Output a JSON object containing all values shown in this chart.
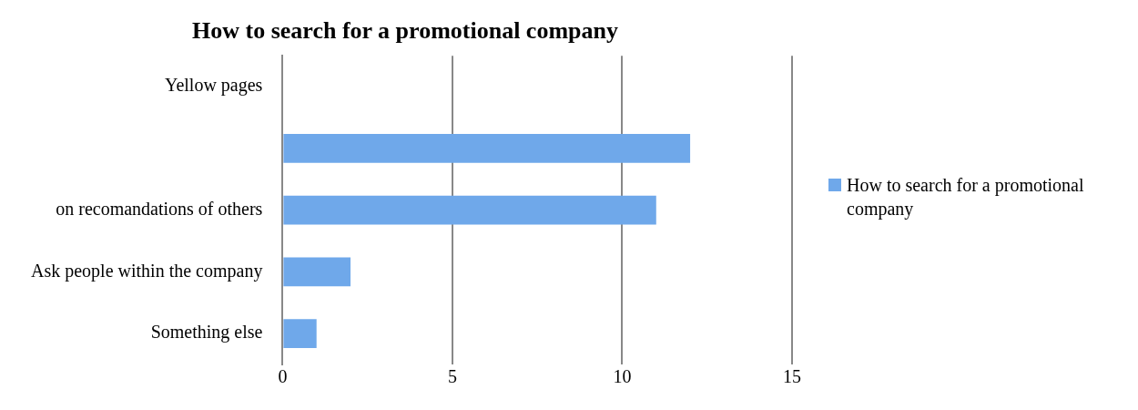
{
  "chart_data": {
    "type": "bar",
    "orientation": "horizontal",
    "title": "How to search for a promotional company",
    "categories": [
      "Yellow pages",
      null,
      "on recomandations of others",
      "Ask people within the company",
      "Something else"
    ],
    "series": [
      {
        "name": "How to search for a promotional company",
        "color": "#6fa8ea",
        "values": [
          0,
          12,
          11,
          2,
          1
        ]
      }
    ],
    "xlim": [
      0,
      15
    ],
    "xticks": [
      0,
      5,
      10,
      15
    ],
    "grid": "x",
    "legend": "right"
  }
}
